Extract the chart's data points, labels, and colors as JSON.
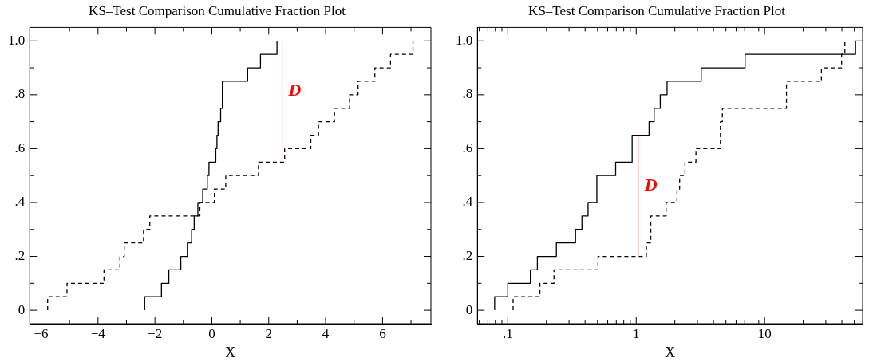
{
  "chart_data": [
    {
      "type": "step",
      "title": "KS–Test Comparison Cumulative Fraction Plot",
      "xlabel": "X",
      "xlim": [
        -6.4,
        7.7
      ],
      "ylim": [
        -0.05,
        1.05
      ],
      "xticks": [
        {
          "value": -6,
          "label": "−6"
        },
        {
          "value": -5,
          "label": null
        },
        {
          "value": -4,
          "label": "−4"
        },
        {
          "value": -3,
          "label": null
        },
        {
          "value": -2,
          "label": "−2"
        },
        {
          "value": -1,
          "label": null
        },
        0,
        {
          "value": 1,
          "label": null
        },
        2,
        {
          "value": 3,
          "label": null
        },
        4,
        {
          "value": 5,
          "label": null
        },
        6,
        {
          "value": 7,
          "label": null
        }
      ],
      "yticks": [
        0,
        {
          "value": 0.1,
          "label": null
        },
        {
          "value": 0.2,
          "label": ".2"
        },
        {
          "value": 0.3,
          "label": null
        },
        {
          "value": 0.4,
          "label": ".4"
        },
        {
          "value": 0.5,
          "label": null
        },
        {
          "value": 0.6,
          "label": ".6"
        },
        {
          "value": 0.7,
          "label": null
        },
        {
          "value": 0.8,
          "label": ".8"
        },
        {
          "value": 0.9,
          "label": null
        },
        {
          "value": 1.0,
          "label": "1.0"
        }
      ],
      "grid": false,
      "legend": false,
      "marker": "none",
      "series": [
        {
          "color": "#000000",
          "line_style": "solid",
          "x": [
            -2.36,
            -2.36,
            -1.77,
            -1.51,
            -1.09,
            -0.86,
            -0.71,
            -0.62,
            -0.49,
            -0.32,
            -0.16,
            -0.1,
            0.14,
            0.18,
            0.22,
            0.31,
            0.37,
            1.26,
            1.71,
            2.29
          ],
          "values": [
            0,
            0.05,
            0.1,
            0.15,
            0.2,
            0.25,
            0.3,
            0.35,
            0.4,
            0.45,
            0.5,
            0.55,
            0.6,
            0.65,
            0.7,
            0.75,
            0.85,
            0.9,
            0.95,
            1.0
          ]
        },
        {
          "color": "#000000",
          "line_style": "dashed",
          "x": [
            -5.77,
            -5.77,
            -5.09,
            -3.79,
            -3.23,
            -3.08,
            -2.4,
            -2.18,
            -0.42,
            0.09,
            0.49,
            1.64,
            2.56,
            3.48,
            3.75,
            4.31,
            4.84,
            5.14,
            5.73,
            6.28,
            7.07
          ],
          "values": [
            0,
            0.05,
            0.1,
            0.15,
            0.2,
            0.25,
            0.3,
            0.35,
            0.4,
            0.45,
            0.5,
            0.55,
            0.6,
            0.65,
            0.7,
            0.75,
            0.8,
            0.85,
            0.9,
            0.95,
            1.0
          ]
        },
        {
          "type": "line",
          "color": "#ff0000",
          "line_style": "solid",
          "x": [
            2.47,
            2.47
          ],
          "values": [
            0.555,
            1.0
          ]
        }
      ],
      "annotations": [
        "D"
      ]
    },
    {
      "type": "step",
      "title": "KS–Test Comparison Cumulative Fraction Plot",
      "xlabel": "X",
      "log": "x",
      "xlim": [
        0.058,
        58
      ],
      "ylim": [
        -0.05,
        1.05
      ],
      "xticks": [
        {
          "value": 0.06,
          "label": null
        },
        {
          "value": 0.07,
          "label": null
        },
        {
          "value": 0.08,
          "label": null
        },
        {
          "value": 0.09,
          "label": null
        },
        {
          "value": 0.1,
          "label": ".1"
        },
        {
          "value": 0.2,
          "label": null
        },
        {
          "value": 0.3,
          "label": null
        },
        {
          "value": 0.4,
          "label": null
        },
        {
          "value": 0.5,
          "label": null
        },
        {
          "value": 0.6,
          "label": null
        },
        {
          "value": 0.7,
          "label": null
        },
        {
          "value": 0.8,
          "label": null
        },
        {
          "value": 0.9,
          "label": null
        },
        1,
        {
          "value": 2,
          "label": null
        },
        {
          "value": 3,
          "label": null
        },
        {
          "value": 4,
          "label": null
        },
        {
          "value": 5,
          "label": null
        },
        {
          "value": 6,
          "label": null
        },
        {
          "value": 7,
          "label": null
        },
        {
          "value": 8,
          "label": null
        },
        {
          "value": 9,
          "label": null
        },
        10,
        {
          "value": 20,
          "label": null
        },
        {
          "value": 30,
          "label": null
        },
        {
          "value": 40,
          "label": null
        },
        {
          "value": 50,
          "label": null
        }
      ],
      "yticks": [
        0,
        {
          "value": 0.1,
          "label": null
        },
        {
          "value": 0.2,
          "label": ".2"
        },
        {
          "value": 0.3,
          "label": null
        },
        {
          "value": 0.4,
          "label": ".4"
        },
        {
          "value": 0.5,
          "label": null
        },
        {
          "value": 0.6,
          "label": ".6"
        },
        {
          "value": 0.7,
          "label": null
        },
        {
          "value": 0.8,
          "label": ".8"
        },
        {
          "value": 0.9,
          "label": null
        },
        {
          "value": 1.0,
          "label": "1.0"
        }
      ],
      "grid": false,
      "legend": false,
      "marker": "none",
      "series": [
        {
          "color": "#000000",
          "line_style": "solid",
          "x": [
            0.079,
            0.079,
            0.1,
            0.15,
            0.17,
            0.239,
            0.337,
            0.378,
            0.422,
            0.494,
            0.692,
            0.93,
            1.26,
            1.38,
            1.54,
            1.74,
            3.21,
            7.05,
            51.1
          ],
          "values": [
            0,
            0.05,
            0.1,
            0.15,
            0.2,
            0.25,
            0.3,
            0.35,
            0.4,
            0.5,
            0.55,
            0.65,
            0.7,
            0.75,
            0.8,
            0.85,
            0.9,
            0.95,
            1.0
          ]
        },
        {
          "color": "#000000",
          "line_style": "dashed",
          "x": [
            0.11,
            0.11,
            0.178,
            0.229,
            0.504,
            1.2,
            1.3,
            1.71,
            2.08,
            2.18,
            2.4,
            2.92,
            4.53,
            4.69,
            14.8,
            27.7,
            39.8,
            42.2
          ],
          "values": [
            0,
            0.05,
            0.1,
            0.15,
            0.2,
            0.25,
            0.35,
            0.4,
            0.45,
            0.5,
            0.55,
            0.6,
            0.7,
            0.75,
            0.85,
            0.9,
            0.95,
            1.0
          ]
        },
        {
          "type": "line",
          "color": "#ff0000",
          "line_style": "solid",
          "x": [
            1.035,
            1.035
          ],
          "values": [
            0.2,
            0.65
          ]
        }
      ],
      "annotations": [
        "D"
      ]
    }
  ]
}
